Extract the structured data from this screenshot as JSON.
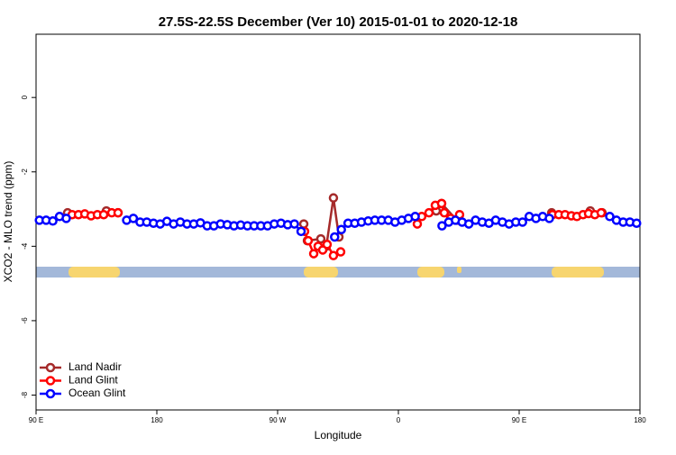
{
  "chart_data": {
    "type": "line",
    "title": "27.5S-22.5S December (Ver 10)   2015-01-01 to 2020-12-18",
    "x_label": "Longitude",
    "y_label": "XCO2 - MLO trend (ppm)",
    "xlim": [
      90,
      540
    ],
    "xticks": [
      {
        "value": 90,
        "label": "90 E"
      },
      {
        "value": 180,
        "label": "180"
      },
      {
        "value": 270,
        "label": "90 W"
      },
      {
        "value": 360,
        "label": "0"
      },
      {
        "value": 450,
        "label": "90 E"
      },
      {
        "value": 540,
        "label": "180"
      }
    ],
    "ylim": [
      -8.4,
      1.7
    ],
    "yticks": [
      0,
      -2,
      -4,
      -6,
      -8
    ],
    "legend": "bottom-left",
    "series": [
      {
        "name": "Land Nadir",
        "color": "#a52a2a",
        "x": [
          113.5,
          142.4,
          151.1,
          289.5,
          292.2,
          302.2,
          306.3,
          311.6,
          315.7,
          388.2,
          392.2,
          403.6,
          474.2,
          503,
          511.8
        ],
        "values": [
          -3.1,
          -3.05,
          -3.1,
          -3.4,
          -3.85,
          -3.8,
          -4.0,
          -2.7,
          -3.75,
          -3.05,
          -2.85,
          -3.3,
          -3.1,
          -3.05,
          -3.1
        ]
      },
      {
        "name": "Land Glint",
        "color": "#ff0000",
        "x": [
          116.9,
          121.6,
          126.3,
          131,
          135.7,
          140.4,
          146.4,
          151.1,
          290.1,
          292.8,
          296.9,
          300.2,
          303.6,
          306.9,
          311.6,
          317,
          374.1,
          377.4,
          382.8,
          387.5,
          392.2,
          394.2,
          398.9,
          405.6,
          474.8,
          479.5,
          484.2,
          488.9,
          493,
          497.6,
          501.7,
          506.4,
          511.1
        ],
        "values": [
          -3.15,
          -3.15,
          -3.13,
          -3.18,
          -3.15,
          -3.15,
          -3.1,
          -3.1,
          -3.6,
          -3.85,
          -4.2,
          -4.0,
          -4.1,
          -3.95,
          -4.25,
          -4.15,
          -3.4,
          -3.2,
          -3.1,
          -2.9,
          -2.85,
          -3.1,
          -3.25,
          -3.15,
          -3.15,
          -3.15,
          -3.15,
          -3.18,
          -3.2,
          -3.15,
          -3.12,
          -3.15,
          -3.1
        ]
      },
      {
        "name": "Ocean Glint",
        "color": "#0000ff",
        "x": [
          92.5,
          97.5,
          102.5,
          107.5,
          112.5,
          157.5,
          162.5,
          167.5,
          172.5,
          177.5,
          182.5,
          187.5,
          192.5,
          197.5,
          202.5,
          207.5,
          212.5,
          217.5,
          222.5,
          227.5,
          232.5,
          237.5,
          242.5,
          247.5,
          252.5,
          257.5,
          262.5,
          267.5,
          272.5,
          277.5,
          282.5,
          287.5,
          312.5,
          317.5,
          322.5,
          327.5,
          332.5,
          337.5,
          342.5,
          347.5,
          352.5,
          357.5,
          362.5,
          367.5,
          372.5,
          392.5,
          397.5,
          402.5,
          407.5,
          412.5,
          417.5,
          422.5,
          427.5,
          432.5,
          437.5,
          442.5,
          447.5,
          452.5,
          457.5,
          462.5,
          467.5,
          472.5,
          517.5,
          522.5,
          527.5,
          532.5,
          537.5
        ],
        "values": [
          -3.3,
          -3.3,
          -3.32,
          -3.2,
          -3.25,
          -3.3,
          -3.25,
          -3.35,
          -3.35,
          -3.38,
          -3.4,
          -3.33,
          -3.4,
          -3.35,
          -3.4,
          -3.4,
          -3.37,
          -3.45,
          -3.45,
          -3.4,
          -3.42,
          -3.45,
          -3.43,
          -3.45,
          -3.45,
          -3.45,
          -3.45,
          -3.4,
          -3.38,
          -3.42,
          -3.4,
          -3.6,
          -3.75,
          -3.55,
          -3.38,
          -3.38,
          -3.35,
          -3.32,
          -3.3,
          -3.3,
          -3.3,
          -3.35,
          -3.3,
          -3.25,
          -3.2,
          -3.45,
          -3.35,
          -3.3,
          -3.35,
          -3.4,
          -3.3,
          -3.35,
          -3.38,
          -3.3,
          -3.35,
          -3.4,
          -3.35,
          -3.35,
          -3.2,
          -3.25,
          -3.2,
          -3.25,
          -3.2,
          -3.3,
          -3.35,
          -3.35,
          -3.38
        ]
      }
    ]
  }
}
